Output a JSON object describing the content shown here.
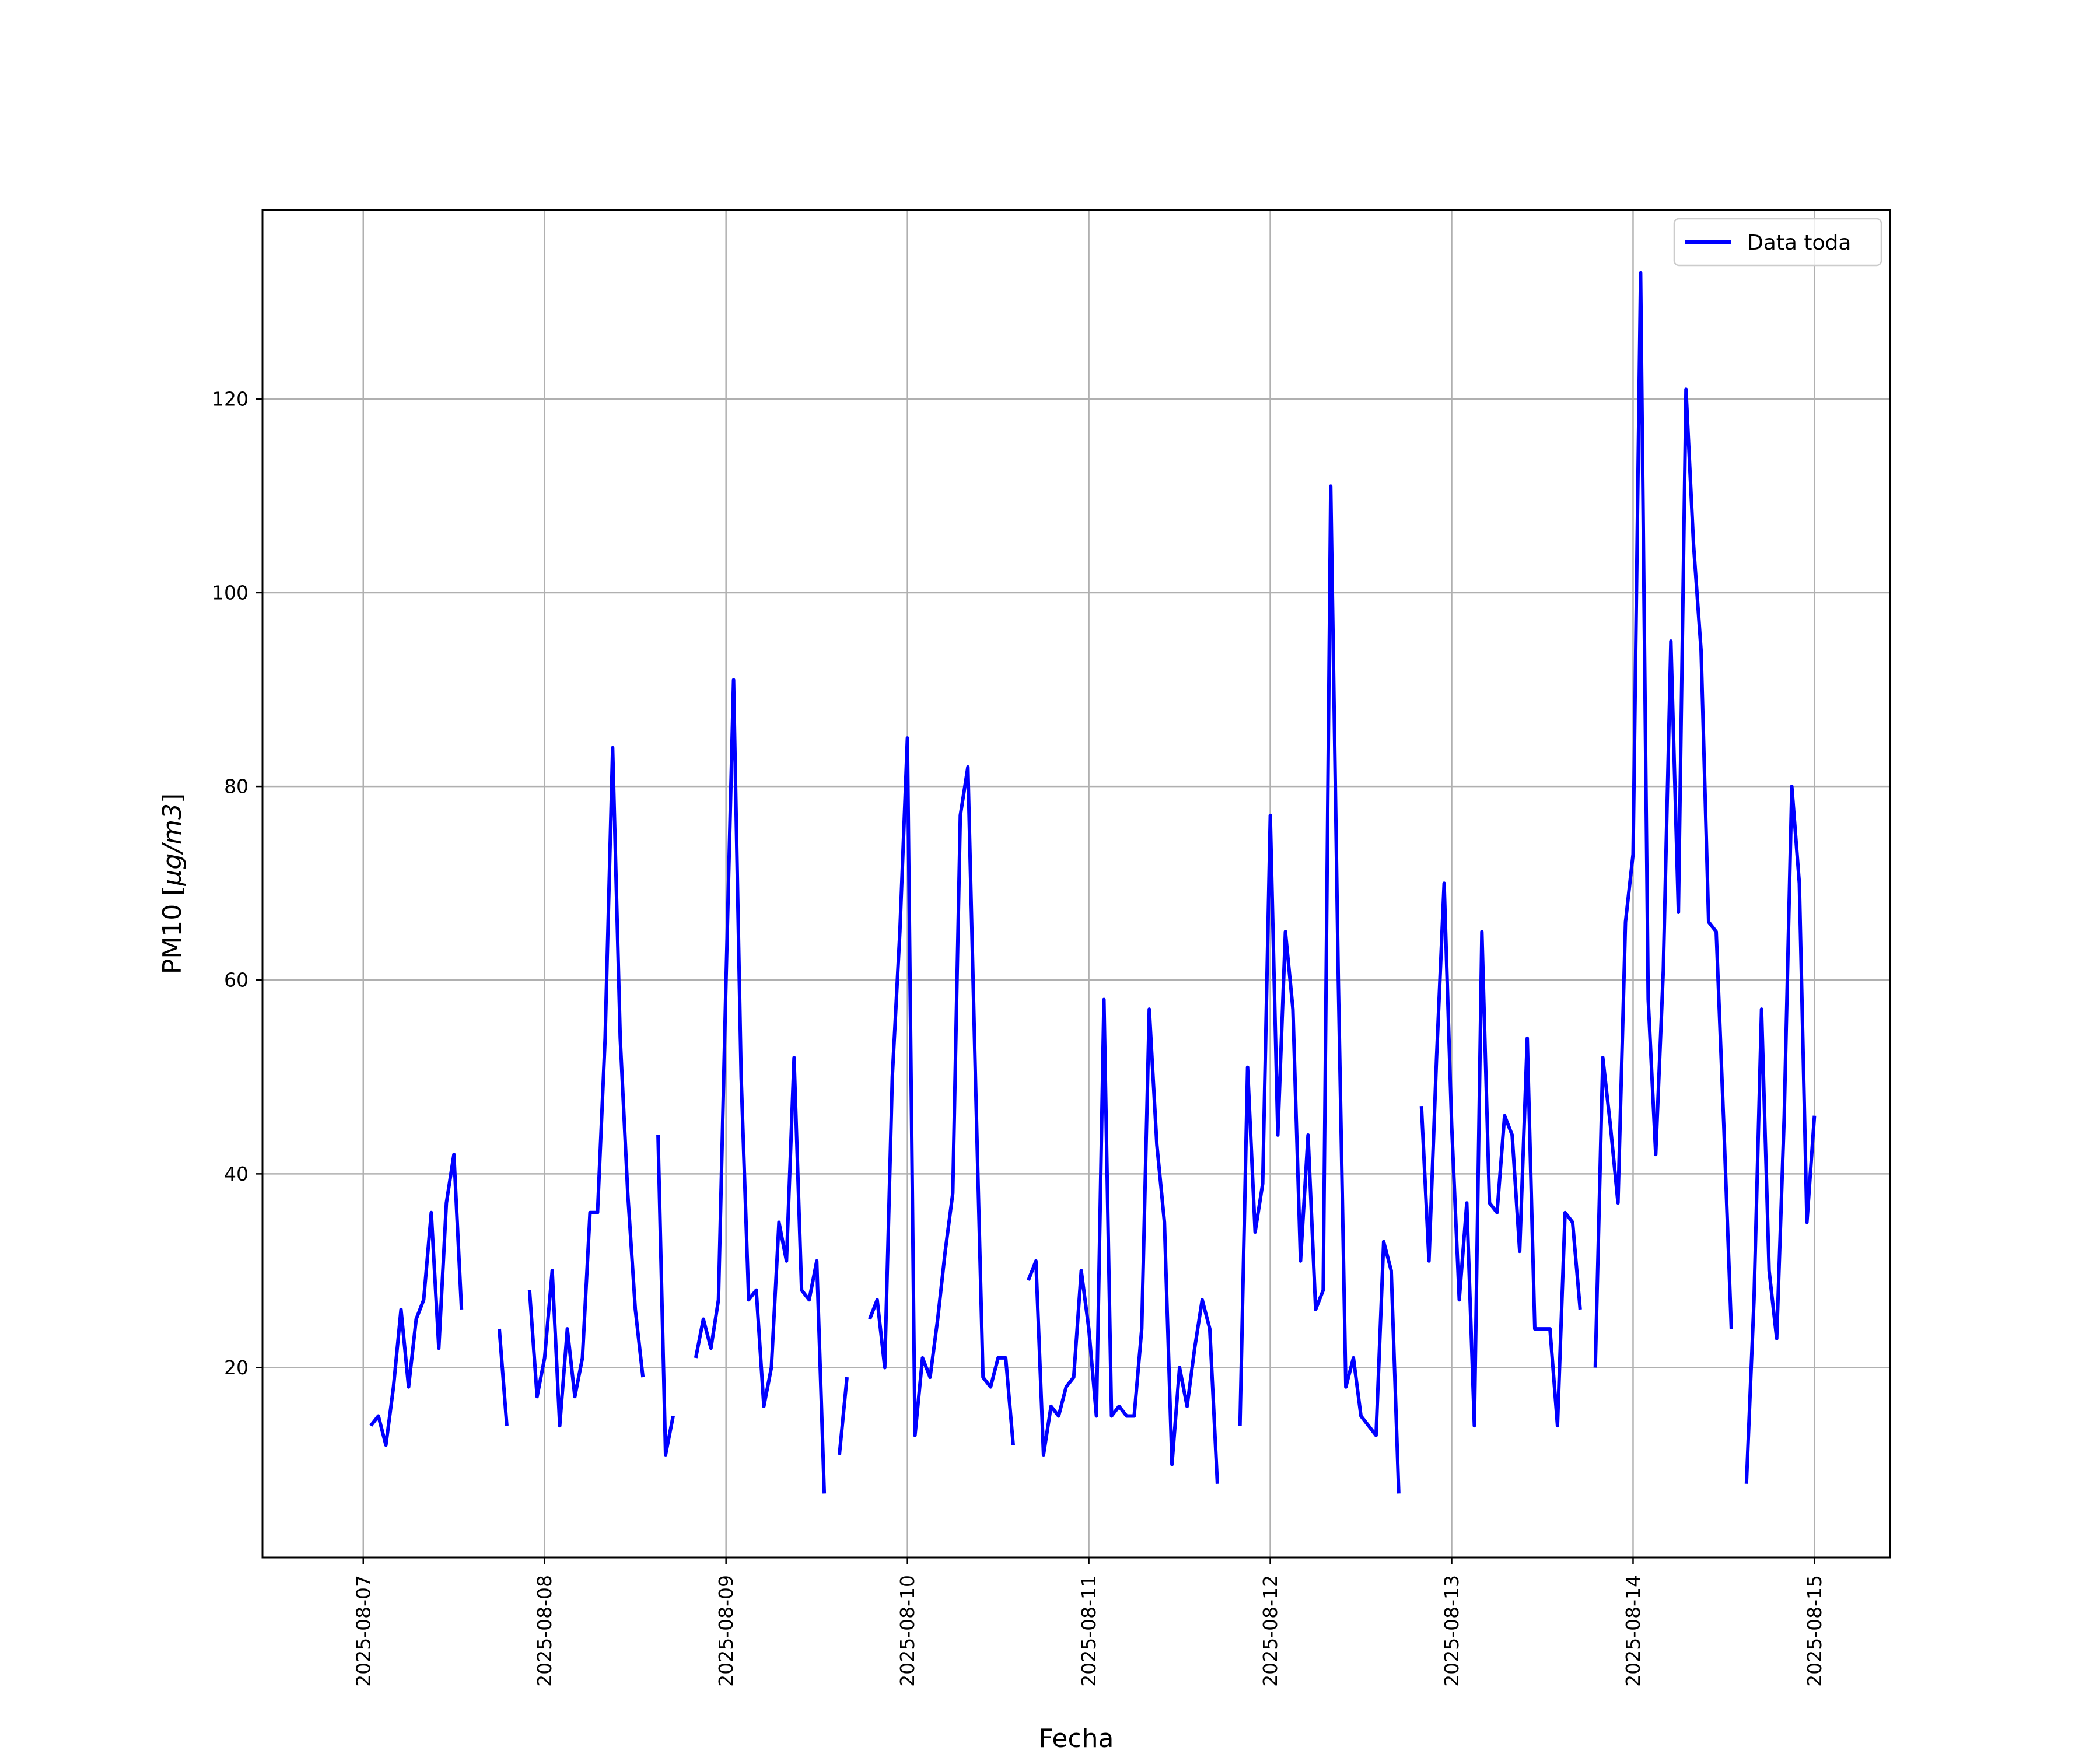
{
  "chart_data": {
    "type": "line",
    "xlabel": "Fecha",
    "ylabel_prefix": "PM10 [",
    "ylabel_unit": "μg/m3",
    "ylabel_suffix": "]",
    "x_ticks": [
      "2025-08-07",
      "2025-08-08",
      "2025-08-09",
      "2025-08-10",
      "2025-08-11",
      "2025-08-12",
      "2025-08-13",
      "2025-08-14",
      "2025-08-15"
    ],
    "y_ticks": [
      20,
      40,
      60,
      80,
      100,
      120
    ],
    "xlim": [
      "2025-08-06 10:40",
      "2025-08-15 10:00"
    ],
    "ylim": [
      0.4,
      139.5
    ],
    "grid": true,
    "legend_position": "top-right",
    "series": [
      {
        "name": "Data toda",
        "color": "#0000ff",
        "segments": [
          [
            [
              "2025-08-07 01:00",
              14
            ],
            [
              "2025-08-07 02:00",
              15
            ],
            [
              "2025-08-07 03:00",
              12
            ],
            [
              "2025-08-07 04:00",
              18
            ],
            [
              "2025-08-07 05:00",
              26
            ],
            [
              "2025-08-07 06:00",
              18
            ],
            [
              "2025-08-07 07:00",
              25
            ],
            [
              "2025-08-07 08:00",
              27
            ],
            [
              "2025-08-07 09:00",
              36
            ],
            [
              "2025-08-07 10:00",
              22
            ],
            [
              "2025-08-07 11:00",
              37
            ],
            [
              "2025-08-07 12:00",
              42
            ],
            [
              "2025-08-07 13:00",
              26
            ]
          ],
          [
            [
              "2025-08-07 18:00",
              24
            ],
            [
              "2025-08-07 19:00",
              14
            ]
          ],
          [
            [
              "2025-08-07 22:00",
              28
            ],
            [
              "2025-08-07 23:00",
              17
            ],
            [
              "2025-08-08 00:00",
              21
            ],
            [
              "2025-08-08 01:00",
              30
            ],
            [
              "2025-08-08 02:00",
              14
            ],
            [
              "2025-08-08 03:00",
              24
            ],
            [
              "2025-08-08 04:00",
              17
            ],
            [
              "2025-08-08 05:00",
              21
            ],
            [
              "2025-08-08 06:00",
              36
            ],
            [
              "2025-08-08 07:00",
              36
            ],
            [
              "2025-08-08 08:00",
              54
            ],
            [
              "2025-08-08 09:00",
              84
            ],
            [
              "2025-08-08 10:00",
              54
            ],
            [
              "2025-08-08 11:00",
              38
            ],
            [
              "2025-08-08 12:00",
              26
            ],
            [
              "2025-08-08 13:00",
              19
            ]
          ],
          [
            [
              "2025-08-08 15:00",
              44
            ],
            [
              "2025-08-08 16:00",
              11
            ],
            [
              "2025-08-08 17:00",
              15
            ]
          ],
          [
            [
              "2025-08-08 20:00",
              21
            ],
            [
              "2025-08-08 21:00",
              25
            ],
            [
              "2025-08-08 22:00",
              22
            ],
            [
              "2025-08-08 23:00",
              27
            ],
            [
              "2025-08-09 00:00",
              60
            ],
            [
              "2025-08-09 01:00",
              91
            ],
            [
              "2025-08-09 02:00",
              50
            ],
            [
              "2025-08-09 03:00",
              27
            ],
            [
              "2025-08-09 04:00",
              28
            ],
            [
              "2025-08-09 05:00",
              16
            ],
            [
              "2025-08-09 06:00",
              20
            ],
            [
              "2025-08-09 07:00",
              35
            ],
            [
              "2025-08-09 08:00",
              31
            ],
            [
              "2025-08-09 09:00",
              52
            ],
            [
              "2025-08-09 10:00",
              28
            ],
            [
              "2025-08-09 11:00",
              27
            ],
            [
              "2025-08-09 12:00",
              31
            ],
            [
              "2025-08-09 13:00",
              7
            ]
          ],
          [
            [
              "2025-08-09 15:00",
              11
            ],
            [
              "2025-08-09 16:00",
              19
            ]
          ],
          [
            [
              "2025-08-09 19:00",
              25
            ],
            [
              "2025-08-09 20:00",
              27
            ],
            [
              "2025-08-09 21:00",
              20
            ],
            [
              "2025-08-09 22:00",
              50
            ],
            [
              "2025-08-09 23:00",
              65
            ],
            [
              "2025-08-10 00:00",
              85
            ],
            [
              "2025-08-10 01:00",
              13
            ],
            [
              "2025-08-10 02:00",
              21
            ],
            [
              "2025-08-10 03:00",
              19
            ],
            [
              "2025-08-10 04:00",
              25
            ],
            [
              "2025-08-10 05:00",
              32
            ],
            [
              "2025-08-10 06:00",
              38
            ],
            [
              "2025-08-10 07:00",
              77
            ],
            [
              "2025-08-10 08:00",
              82
            ],
            [
              "2025-08-10 09:00",
              50
            ],
            [
              "2025-08-10 10:00",
              19
            ],
            [
              "2025-08-10 11:00",
              18
            ],
            [
              "2025-08-10 12:00",
              21
            ],
            [
              "2025-08-10 13:00",
              21
            ],
            [
              "2025-08-10 14:00",
              12
            ]
          ],
          [
            [
              "2025-08-10 16:00",
              29
            ],
            [
              "2025-08-10 17:00",
              31
            ],
            [
              "2025-08-10 18:00",
              11
            ],
            [
              "2025-08-10 19:00",
              16
            ],
            [
              "2025-08-10 20:00",
              15
            ],
            [
              "2025-08-10 21:00",
              18
            ],
            [
              "2025-08-10 22:00",
              19
            ],
            [
              "2025-08-10 23:00",
              30
            ],
            [
              "2025-08-11 00:00",
              24
            ],
            [
              "2025-08-11 01:00",
              15
            ],
            [
              "2025-08-11 02:00",
              58
            ],
            [
              "2025-08-11 03:00",
              15
            ],
            [
              "2025-08-11 04:00",
              16
            ],
            [
              "2025-08-11 05:00",
              15
            ],
            [
              "2025-08-11 06:00",
              15
            ],
            [
              "2025-08-11 07:00",
              24
            ],
            [
              "2025-08-11 08:00",
              57
            ],
            [
              "2025-08-11 09:00",
              43
            ],
            [
              "2025-08-11 10:00",
              35
            ],
            [
              "2025-08-11 11:00",
              10
            ],
            [
              "2025-08-11 12:00",
              20
            ],
            [
              "2025-08-11 13:00",
              16
            ],
            [
              "2025-08-11 14:00",
              22
            ],
            [
              "2025-08-11 15:00",
              27
            ],
            [
              "2025-08-11 16:00",
              24
            ],
            [
              "2025-08-11 17:00",
              8
            ]
          ],
          [
            [
              "2025-08-11 20:00",
              14
            ],
            [
              "2025-08-11 21:00",
              51
            ],
            [
              "2025-08-11 22:00",
              34
            ],
            [
              "2025-08-11 23:00",
              39
            ],
            [
              "2025-08-12 00:00",
              77
            ],
            [
              "2025-08-12 01:00",
              44
            ],
            [
              "2025-08-12 02:00",
              65
            ],
            [
              "2025-08-12 03:00",
              57
            ],
            [
              "2025-08-12 04:00",
              31
            ],
            [
              "2025-08-12 05:00",
              44
            ],
            [
              "2025-08-12 06:00",
              26
            ],
            [
              "2025-08-12 07:00",
              28
            ],
            [
              "2025-08-12 08:00",
              111
            ],
            [
              "2025-08-12 09:00",
              60
            ],
            [
              "2025-08-12 10:00",
              18
            ],
            [
              "2025-08-12 11:00",
              21
            ],
            [
              "2025-08-12 12:00",
              15
            ],
            [
              "2025-08-12 13:00",
              14
            ],
            [
              "2025-08-12 14:00",
              13
            ],
            [
              "2025-08-12 15:00",
              33
            ],
            [
              "2025-08-12 16:00",
              30
            ],
            [
              "2025-08-12 17:00",
              7
            ]
          ],
          [
            [
              "2025-08-12 20:00",
              47
            ],
            [
              "2025-08-12 21:00",
              31
            ],
            [
              "2025-08-12 22:00",
              52
            ],
            [
              "2025-08-12 23:00",
              70
            ],
            [
              "2025-08-13 00:00",
              45
            ],
            [
              "2025-08-13 01:00",
              27
            ],
            [
              "2025-08-13 02:00",
              37
            ],
            [
              "2025-08-13 03:00",
              14
            ],
            [
              "2025-08-13 04:00",
              65
            ],
            [
              "2025-08-13 05:00",
              37
            ],
            [
              "2025-08-13 06:00",
              36
            ],
            [
              "2025-08-13 07:00",
              46
            ],
            [
              "2025-08-13 08:00",
              44
            ],
            [
              "2025-08-13 09:00",
              32
            ],
            [
              "2025-08-13 10:00",
              54
            ],
            [
              "2025-08-13 11:00",
              24
            ],
            [
              "2025-08-13 12:00",
              24
            ],
            [
              "2025-08-13 13:00",
              24
            ],
            [
              "2025-08-13 14:00",
              14
            ],
            [
              "2025-08-13 15:00",
              36
            ],
            [
              "2025-08-13 16:00",
              35
            ],
            [
              "2025-08-13 17:00",
              26
            ]
          ],
          [
            [
              "2025-08-13 19:00",
              20
            ],
            [
              "2025-08-13 20:00",
              52
            ],
            [
              "2025-08-13 21:00",
              45
            ],
            [
              "2025-08-13 22:00",
              37
            ],
            [
              "2025-08-13 23:00",
              66
            ],
            [
              "2025-08-14 00:00",
              73
            ],
            [
              "2025-08-14 01:00",
              133
            ],
            [
              "2025-08-14 02:00",
              58
            ],
            [
              "2025-08-14 03:00",
              42
            ],
            [
              "2025-08-14 04:00",
              61
            ],
            [
              "2025-08-14 05:00",
              95
            ],
            [
              "2025-08-14 06:00",
              67
            ],
            [
              "2025-08-14 07:00",
              121
            ],
            [
              "2025-08-14 08:00",
              105
            ],
            [
              "2025-08-14 09:00",
              94
            ],
            [
              "2025-08-14 10:00",
              66
            ],
            [
              "2025-08-14 11:00",
              65
            ],
            [
              "2025-08-14 12:00",
              45
            ],
            [
              "2025-08-14 13:00",
              24
            ]
          ],
          [
            [
              "2025-08-14 15:00",
              8
            ],
            [
              "2025-08-14 16:00",
              27
            ],
            [
              "2025-08-14 17:00",
              57
            ],
            [
              "2025-08-14 18:00",
              30
            ],
            [
              "2025-08-14 19:00",
              23
            ],
            [
              "2025-08-14 20:00",
              46
            ],
            [
              "2025-08-14 21:00",
              80
            ],
            [
              "2025-08-14 22:00",
              70
            ],
            [
              "2025-08-14 23:00",
              35
            ],
            [
              "2025-08-15 00:00",
              46
            ]
          ]
        ]
      }
    ]
  }
}
